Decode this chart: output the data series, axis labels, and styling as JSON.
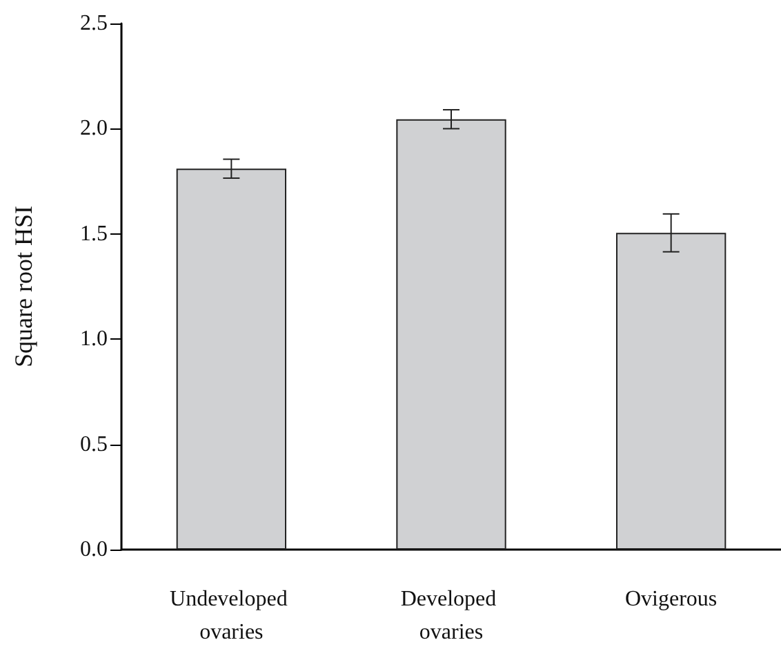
{
  "chart_data": {
    "type": "bar",
    "ylabel": "Square root HSI",
    "categories": [
      "Undeveloped ovaries",
      "Developed ovaries",
      "Ovigerous"
    ],
    "values": [
      1.81,
      2.045,
      1.505
    ],
    "errors": [
      0.045,
      0.045,
      0.09
    ],
    "color": "#d0d1d3",
    "ylim": [
      0,
      2.5
    ],
    "yticks": [
      {
        "value": 0,
        "label": "0.0"
      },
      0.5,
      {
        "value": 1,
        "label": "1.0"
      },
      1.5,
      {
        "value": 2,
        "label": "2.0"
      },
      2.5
    ],
    "grid": false
  }
}
